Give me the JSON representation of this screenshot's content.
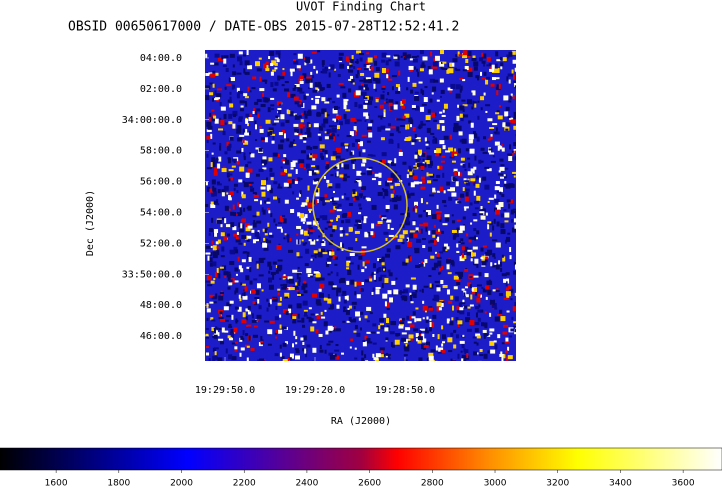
{
  "chart_data": {
    "type": "image",
    "title": "UVOT Finding Chart",
    "subtitle": "OBSID 00650617000 / DATE-OBS 2015-07-28T12:52:41.2",
    "xlabel": "RA (J2000)",
    "ylabel": "Dec (J2000)",
    "xlim": [
      292.4861,
      292.0541
    ],
    "ylim": [
      33.7397,
      34.0753
    ],
    "xticks": [
      {
        "value": 292.4583,
        "label": "19:29:50.0"
      },
      {
        "value": 292.3333,
        "label": "19:29:20.0"
      },
      {
        "value": 292.2083,
        "label": "19:28:50.0"
      }
    ],
    "yticks": [
      {
        "value": 34.0667,
        "label": "04:00.0"
      },
      {
        "value": 34.0333,
        "label": "02:00.0"
      },
      {
        "value": 34.0,
        "label": "34:00:00.0"
      },
      {
        "value": 33.9667,
        "label": "58:00.0"
      },
      {
        "value": 33.9333,
        "label": "56:00.0"
      },
      {
        "value": 33.9,
        "label": "54:00.0"
      },
      {
        "value": 33.8667,
        "label": "52:00.0"
      },
      {
        "value": 33.8333,
        "label": "33:50:00.0"
      },
      {
        "value": 33.8,
        "label": "48:00.0"
      },
      {
        "value": 33.7667,
        "label": "46:00.0"
      }
    ],
    "colorbar": {
      "lim": [
        1421,
        3724
      ],
      "ticks": [
        1600,
        1800,
        2000,
        2200,
        2400,
        2600,
        2800,
        3000,
        3200,
        3400,
        3600
      ]
    }
  }
}
